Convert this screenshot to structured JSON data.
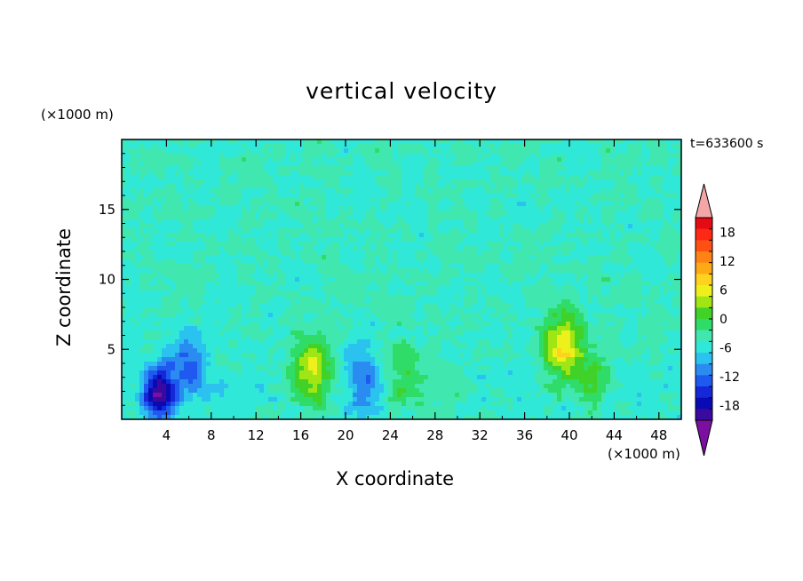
{
  "chart_data": {
    "type": "heatmap",
    "title": "vertical velocity",
    "xlabel": "X coordinate",
    "ylabel": "Z coordinate",
    "x_unit_label": "(×1000 m)",
    "y_unit_label": "(×1000 m)",
    "time_label": "t=633600 s",
    "xlim": [
      0,
      50
    ],
    "ylim": [
      0,
      20
    ],
    "x_ticks": [
      4,
      8,
      12,
      16,
      20,
      24,
      28,
      32,
      36,
      40,
      44,
      48
    ],
    "y_ticks": [
      5,
      10,
      15
    ],
    "colorbar": {
      "labels": [
        "18",
        "12",
        "6",
        "0",
        "-6",
        "-12",
        "-18"
      ],
      "label_values": [
        18,
        12,
        6,
        0,
        -6,
        -12,
        -18
      ],
      "range": [
        -21,
        21
      ],
      "step": 3,
      "extend": "both",
      "colors": [
        "#7a0fa0",
        "#3a0a9e",
        "#0a0ab4",
        "#1428d8",
        "#1e5af0",
        "#2a8cf0",
        "#2cc2f0",
        "#30e8d8",
        "#40e8b0",
        "#30dc68",
        "#40d228",
        "#a0e614",
        "#eef01c",
        "#ffd21e",
        "#ffaa14",
        "#ff8214",
        "#ff5014",
        "#ff2814",
        "#e60a14",
        "#f4a6a6"
      ]
    },
    "features": [
      {
        "name": "downdraft",
        "x": 3.3,
        "z": 1.9,
        "peak": -19
      },
      {
        "name": "downdraft",
        "x": 5.9,
        "z": 3.8,
        "peak": -8
      },
      {
        "name": "updraft",
        "x": 17.0,
        "z": 3.5,
        "peak": 15
      },
      {
        "name": "downdraft",
        "x": 21.5,
        "z": 2.6,
        "peak": -7
      },
      {
        "name": "updraft",
        "x": 25.3,
        "z": 3.0,
        "peak": 7
      },
      {
        "name": "updraft",
        "x": 29.0,
        "z": 2.5,
        "peak": 4
      },
      {
        "name": "updraft",
        "x": 39.3,
        "z": 5.2,
        "peak": 15
      },
      {
        "name": "updraft",
        "x": 42.0,
        "z": 3.0,
        "peak": 7
      }
    ]
  }
}
